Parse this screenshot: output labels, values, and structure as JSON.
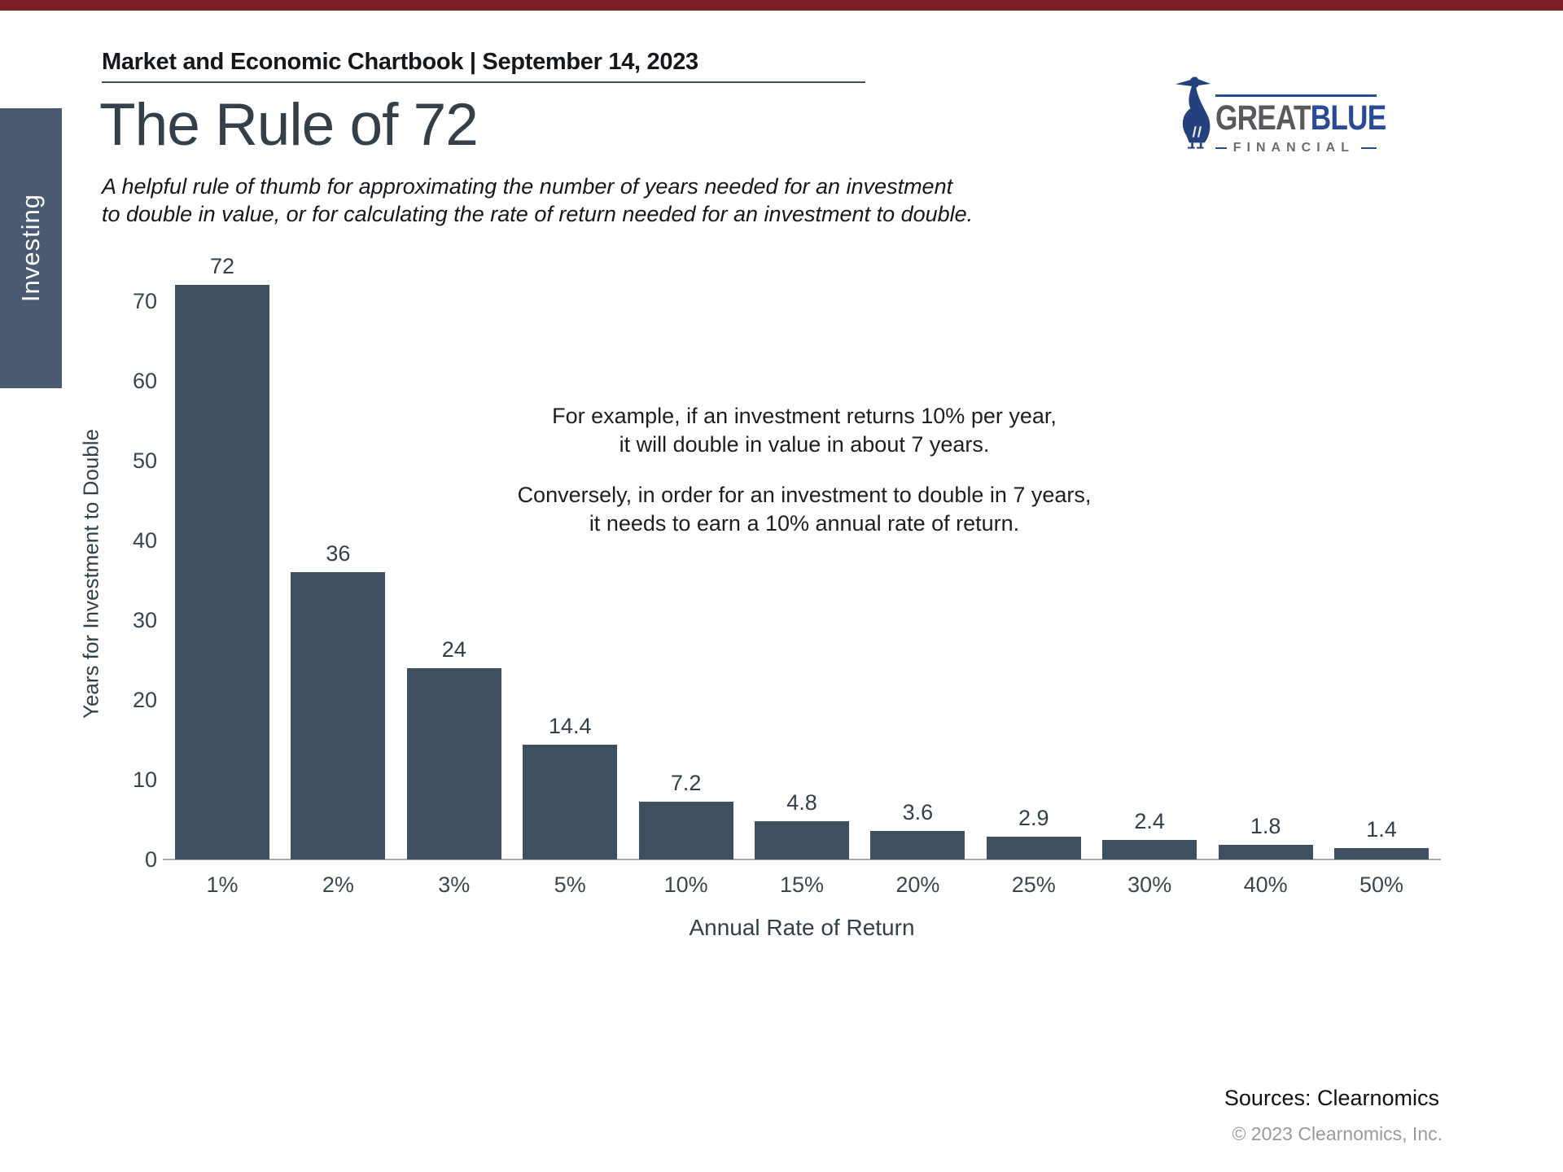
{
  "accent": {
    "top_bar_color": "#7e1f26"
  },
  "sidebar": {
    "label": "Investing",
    "bg_color": "#4a5a71"
  },
  "header": {
    "text": "Market and Economic Chartbook | September 14, 2023"
  },
  "title": "The Rule of 72",
  "subtitle": {
    "line1": "A helpful rule of thumb for approximating the number of years needed for an investment",
    "line2": "to double in value, or for calculating the rate of return needed for an investment to double."
  },
  "logo": {
    "word1": "GREAT",
    "word2": "BLUE",
    "subtext": "FINANCIAL",
    "heron_icon": "blue-heron",
    "blue": "#2b4a96",
    "gray": "#58595c"
  },
  "annotation": {
    "p1_line1": "For example, if an investment returns 10% per year,",
    "p1_line2": "it will double in value in about 7 years.",
    "p2_line1": "Conversely, in order for an investment to double in 7 years,",
    "p2_line2": "it needs to earn a 10% annual rate of return."
  },
  "chart_data": {
    "type": "bar",
    "title": "",
    "categories": [
      "1%",
      "2%",
      "3%",
      "5%",
      "10%",
      "15%",
      "20%",
      "25%",
      "30%",
      "40%",
      "50%"
    ],
    "values": [
      72,
      36,
      24,
      14.4,
      7.2,
      4.8,
      3.6,
      2.9,
      2.4,
      1.8,
      1.4
    ],
    "bar_labels": [
      "72",
      "36",
      "24",
      "14.4",
      "7.2",
      "4.8",
      "3.6",
      "2.9",
      "2.4",
      "1.8",
      "1.4"
    ],
    "xlabel": "Annual Rate of Return",
    "ylabel": "Years for Investment to Double",
    "ylim": [
      0,
      73
    ],
    "yticks": [
      0,
      10,
      20,
      30,
      40,
      50,
      60,
      70
    ],
    "bar_color": "#3e4f5f",
    "axis_color": "#a8aaac",
    "grid": false,
    "legend": "none"
  },
  "footer": {
    "sources": "Sources: Clearnomics",
    "copyright": "© 2023 Clearnomics, Inc."
  }
}
